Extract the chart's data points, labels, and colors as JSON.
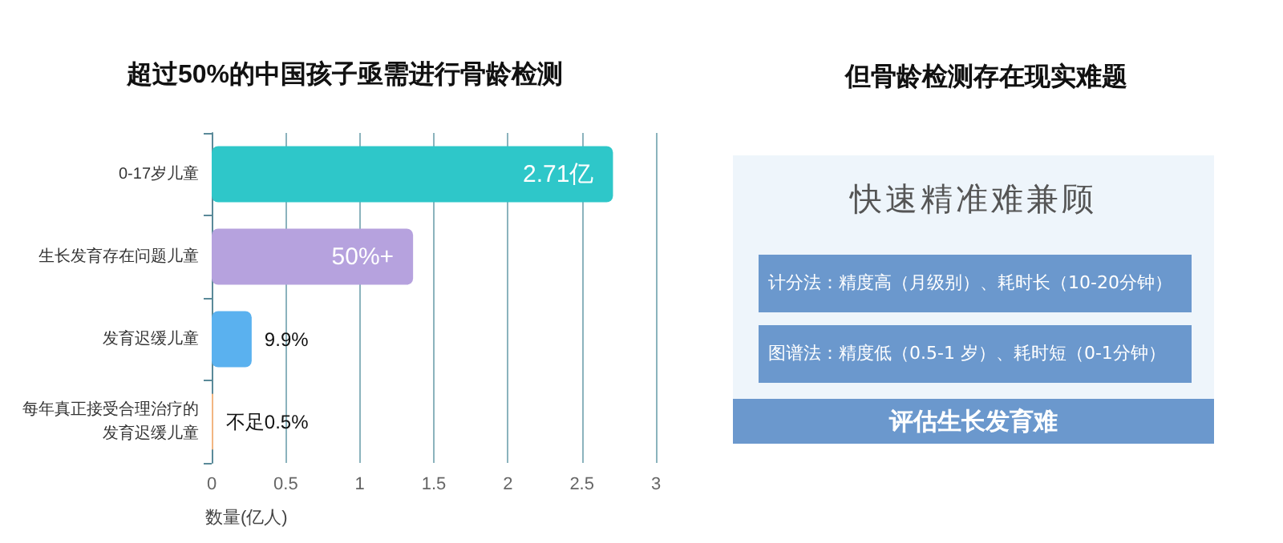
{
  "chart_data": [
    {
      "type": "bar",
      "orientation": "horizontal",
      "title": "超过50%的中国孩子亟需进行骨龄检测",
      "xlabel": "数量(亿人)",
      "categories": [
        "0-17岁儿童",
        "生长发育存在问题儿童",
        "发育迟缓儿童",
        "每年真正接受合理治疗的发育迟缓儿童"
      ],
      "values": [
        2.71,
        1.36,
        0.27,
        0.01
      ],
      "colors": [
        "#2ec7c9",
        "#b6a2de",
        "#5ab1ef",
        "#ffb980"
      ],
      "value_labels": [
        "2.71亿",
        null,
        null,
        null
      ],
      "annotations": [
        {
          "text": "50%+",
          "x": 1.36,
          "y": "生长发育存在问题儿童"
        },
        {
          "text": "9.9%",
          "x": 0.27,
          "y": "发育迟缓儿童"
        },
        {
          "text": "不足0.5%",
          "x": 0.01,
          "y": "每年真正接受合理治疗的发育迟缓儿童"
        }
      ],
      "xlim": [
        0,
        3
      ],
      "xticks": [
        0,
        0.5,
        1,
        1.5,
        2,
        2.5,
        3
      ],
      "grid": "x"
    },
    {
      "type": "other",
      "title": "但骨龄检测存在现实难题",
      "annotations": [
        "快速精准难兼顾",
        "计分法：精度高（月级别）、耗时长（10-20分钟）",
        "图谱法：精度低（0.5-1 岁）、耗时短（0-1分钟）",
        "评估生长发育难"
      ]
    }
  ]
}
